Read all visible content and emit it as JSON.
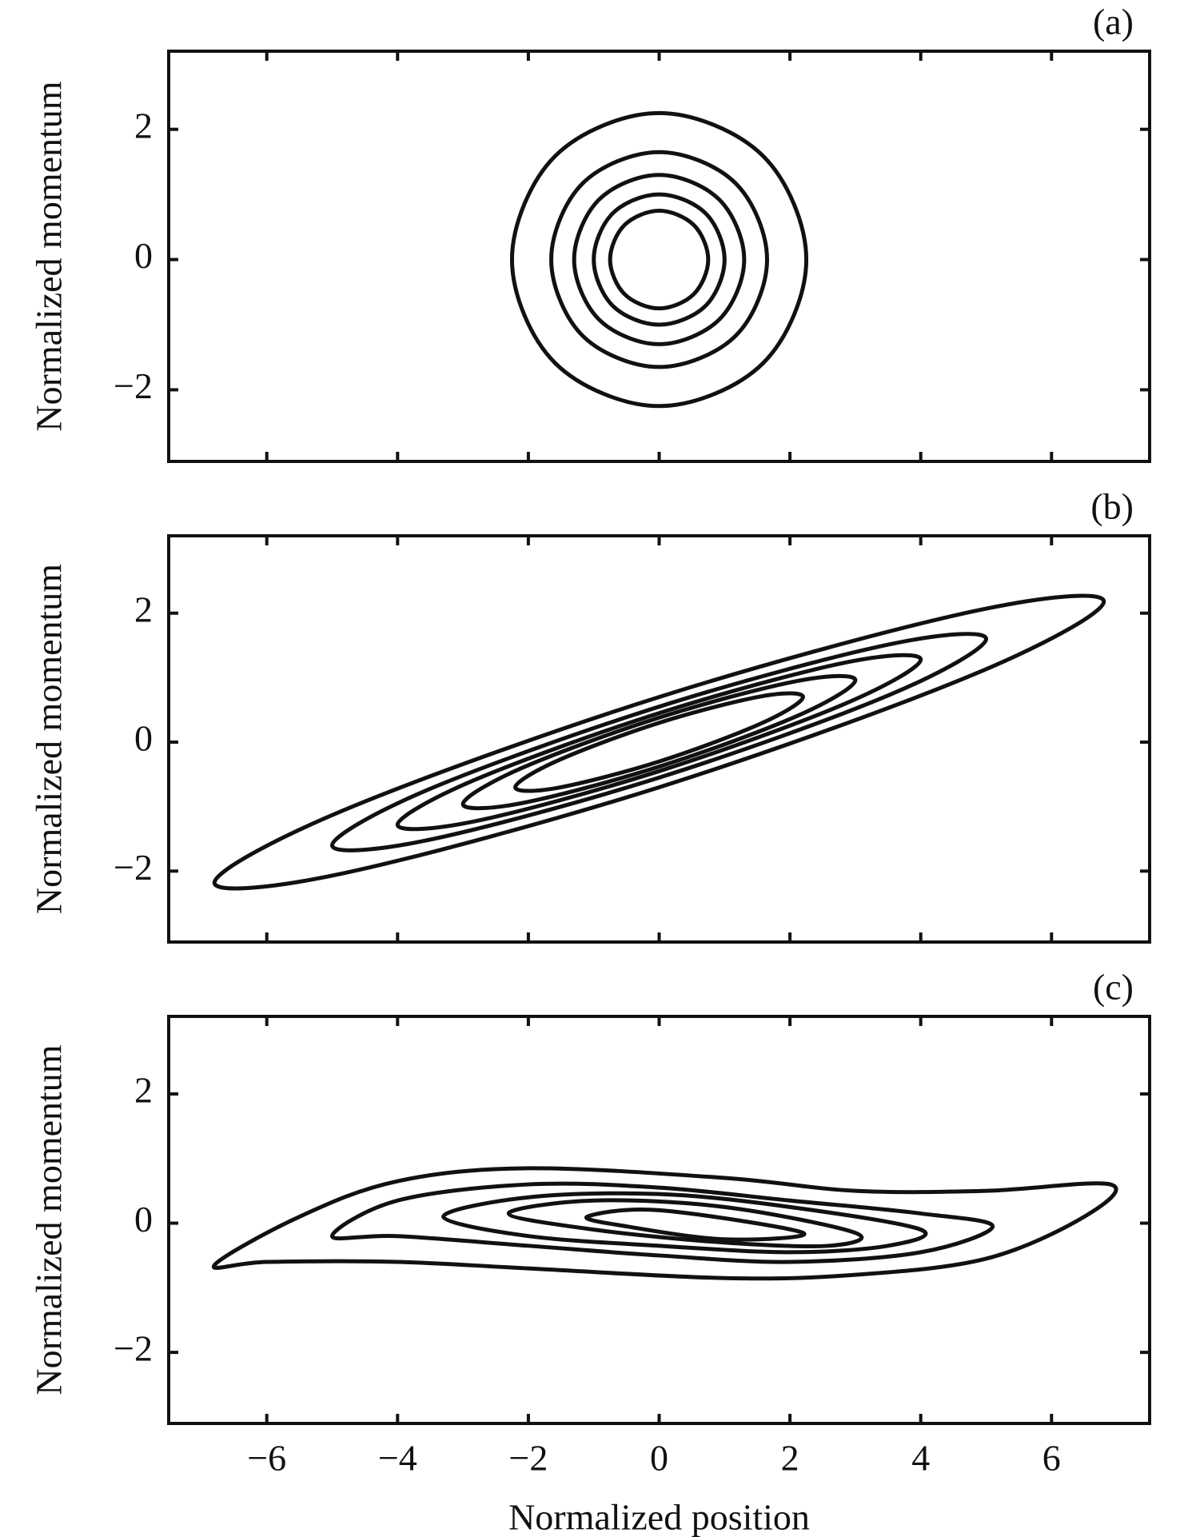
{
  "chart_data": [
    {
      "type": "contour",
      "panel_label": "(a)",
      "ylabel": "Normalized momentum",
      "color": "#111111",
      "xlim": [
        -7.5,
        7.5
      ],
      "ylim": [
        -3.1,
        3.2
      ],
      "xtick_labels": false,
      "xticks": [
        {
          "value": -6,
          "label": "−6"
        },
        {
          "value": -4,
          "label": "−4"
        },
        {
          "value": -2,
          "label": "−2"
        },
        0,
        2,
        4,
        6
      ],
      "yticks": [
        {
          "value": -2,
          "label": "−2"
        },
        0,
        2
      ],
      "series": [
        {
          "x": [
            2.25,
            1.59,
            0,
            -1.59,
            -2.25,
            -1.59,
            0,
            1.59
          ],
          "y": [
            0,
            1.59,
            2.25,
            1.59,
            0,
            -1.59,
            -2.25,
            -1.59
          ]
        },
        {
          "x": [
            1.65,
            1.17,
            0,
            -1.17,
            -1.65,
            -1.17,
            0,
            1.17
          ],
          "y": [
            0,
            1.17,
            1.65,
            1.17,
            0,
            -1.17,
            -1.65,
            -1.17
          ]
        },
        {
          "x": [
            1.3,
            0.92,
            0,
            -0.92,
            -1.3,
            -0.92,
            0,
            0.92
          ],
          "y": [
            0,
            0.92,
            1.3,
            0.92,
            0,
            -0.92,
            -1.3,
            -0.92
          ]
        },
        {
          "x": [
            1.0,
            0.71,
            0,
            -0.71,
            -1.0,
            -0.71,
            0,
            0.71
          ],
          "y": [
            0,
            0.71,
            1.0,
            0.71,
            0,
            -0.71,
            -1.0,
            -0.71
          ]
        },
        {
          "x": [
            0.75,
            0.53,
            0,
            -0.53,
            -0.75,
            -0.53,
            0,
            0.53
          ],
          "y": [
            0,
            0.53,
            0.75,
            0.53,
            0,
            -0.53,
            -0.75,
            -0.53
          ]
        }
      ]
    },
    {
      "type": "contour",
      "panel_label": "(b)",
      "ylabel": "Normalized momentum",
      "color": "#111111",
      "xlim": [
        -7.5,
        7.5
      ],
      "ylim": [
        -3.1,
        3.2
      ],
      "xtick_labels": false,
      "xticks": [
        {
          "value": -6,
          "label": "−6"
        },
        {
          "value": -4,
          "label": "−4"
        },
        {
          "value": -2,
          "label": "−2"
        },
        0,
        2,
        4,
        6
      ],
      "yticks": [
        {
          "value": -2,
          "label": "−2"
        },
        0,
        2
      ],
      "series": [
        {
          "x": [
            6.8,
            4.81,
            0,
            -4.81,
            -6.8,
            -4.81,
            0,
            4.81
          ],
          "y": [
            2.18,
            2.03,
            0.7,
            -1.05,
            -2.18,
            -2.03,
            -0.7,
            1.05
          ]
        },
        {
          "x": [
            5,
            3.54,
            0,
            -3.54,
            -5,
            -3.54,
            0,
            3.54
          ],
          "y": [
            1.6,
            1.52,
            0.55,
            -0.74,
            -1.6,
            -1.52,
            -0.55,
            0.74
          ]
        },
        {
          "x": [
            4,
            2.83,
            0,
            -2.83,
            -4,
            -2.83,
            0,
            2.83
          ],
          "y": [
            1.28,
            1.23,
            0.45,
            -0.59,
            -1.28,
            -1.23,
            -0.45,
            0.59
          ]
        },
        {
          "x": [
            3,
            2.12,
            0,
            -2.12,
            -3,
            -2.12,
            0,
            2.12
          ],
          "y": [
            0.96,
            0.95,
            0.38,
            -0.41,
            -0.96,
            -0.95,
            -0.38,
            0.41
          ]
        },
        {
          "x": [
            2.2,
            1.56,
            0,
            -1.56,
            -2.2,
            -1.56,
            0,
            1.56
          ],
          "y": [
            0.7,
            0.71,
            0.3,
            -0.29,
            -0.7,
            -0.71,
            -0.3,
            0.29
          ]
        }
      ]
    },
    {
      "type": "contour",
      "panel_label": "(c)",
      "ylabel": "Normalized momentum",
      "xlabel": "Normalized position",
      "color": "#111111",
      "xlim": [
        -7.5,
        7.5
      ],
      "ylim": [
        -3.1,
        3.2
      ],
      "xtick_labels": true,
      "xticks": [
        {
          "value": -6,
          "label": "−6"
        },
        {
          "value": -4,
          "label": "−4"
        },
        {
          "value": -2,
          "label": "−2"
        },
        0,
        2,
        4,
        6
      ],
      "yticks": [
        {
          "value": -2,
          "label": "−2"
        },
        0,
        2
      ],
      "series": [
        {
          "x": [
            6.9,
            5,
            3,
            1,
            -2,
            -4,
            -5.5,
            -6.8,
            -6,
            -4,
            -2,
            1,
            3,
            5,
            6.5
          ],
          "y": [
            0.6,
            0.5,
            0.5,
            0.7,
            0.85,
            0.65,
            0.1,
            -0.65,
            -0.6,
            -0.6,
            -0.7,
            -0.85,
            -0.8,
            -0.55,
            0.1
          ]
        },
        {
          "x": [
            5.1,
            4,
            2,
            0,
            -2,
            -4,
            -5,
            -4,
            -2,
            0,
            2,
            4
          ],
          "y": [
            -0.05,
            0.15,
            0.35,
            0.55,
            0.6,
            0.35,
            -0.2,
            -0.2,
            -0.35,
            -0.5,
            -0.6,
            -0.45
          ]
        },
        {
          "x": [
            4,
            2,
            0,
            -2,
            -3.3,
            -2,
            0,
            2,
            3.5
          ],
          "y": [
            -0.1,
            0.25,
            0.45,
            0.4,
            0.1,
            -0.2,
            -0.35,
            -0.45,
            -0.35
          ]
        },
        {
          "x": [
            3,
            1,
            -1,
            -2.3,
            -1,
            1,
            2.6
          ],
          "y": [
            -0.15,
            0.25,
            0.35,
            0.15,
            -0.1,
            -0.3,
            -0.35
          ]
        },
        {
          "x": [
            2.2,
            0,
            -1.1,
            -0.5,
            1
          ],
          "y": [
            -0.15,
            0.2,
            0.1,
            -0.05,
            -0.25
          ]
        }
      ]
    }
  ]
}
